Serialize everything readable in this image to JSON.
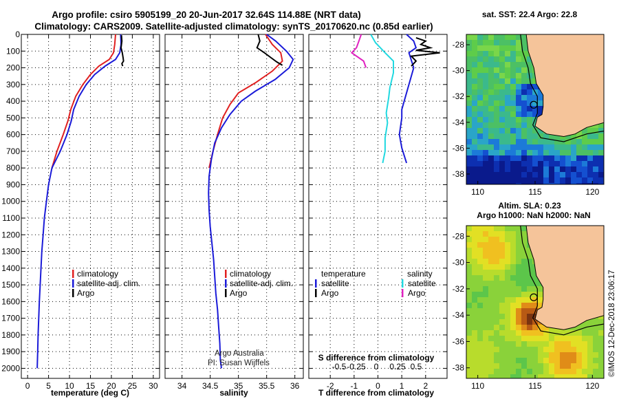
{
  "header": {
    "line1": "Argo profile: csiro 5905199_20 20-Jun-2017 32.64S 114.88E (NRT data)",
    "line2": "Climatology: CARS2009. Satellite-adjusted climatology: synTS_20170620.nc (0.85d earlier)"
  },
  "colors": {
    "climatology": "#e02020",
    "satellite": "#1a1ad8",
    "argo": "#000000",
    "argo_sal_diff": "#e020c0",
    "sat_sal_diff": "#20d8e0",
    "land": "#f5c49a"
  },
  "chart_data": [
    {
      "type": "line",
      "id": "temperature",
      "xlabel": "temperature (deg C)",
      "xlim": [
        -1.5,
        31.5
      ],
      "xticks": [
        0,
        5,
        10,
        15,
        20,
        25,
        30
      ],
      "ylim": [
        0,
        2060
      ],
      "yticks": [
        0,
        100,
        200,
        300,
        400,
        500,
        600,
        700,
        800,
        900,
        1000,
        1100,
        1200,
        1300,
        1400,
        1500,
        1600,
        1700,
        1800,
        1900,
        2000
      ],
      "legend": [
        "climatology",
        "satellite-adj. clim.",
        "Argo"
      ],
      "series": [
        {
          "name": "climatology",
          "points": [
            [
              21,
              0
            ],
            [
              20.8,
              60
            ],
            [
              20.5,
              110
            ],
            [
              19.5,
              150
            ],
            [
              17,
              190
            ],
            [
              15,
              240
            ],
            [
              13.2,
              300
            ],
            [
              11.5,
              370
            ],
            [
              10.3,
              450
            ],
            [
              9.6,
              520
            ],
            [
              8.5,
              600
            ],
            [
              7,
              700
            ],
            [
              5.8,
              800
            ]
          ]
        },
        {
          "name": "satellite-adj. clim.",
          "points": [
            [
              22.2,
              0
            ],
            [
              22.3,
              60
            ],
            [
              22,
              110
            ],
            [
              21,
              150
            ],
            [
              18.5,
              190
            ],
            [
              16,
              240
            ],
            [
              14,
              300
            ],
            [
              12.3,
              370
            ],
            [
              11,
              450
            ],
            [
              10.4,
              520
            ],
            [
              9.4,
              600
            ],
            [
              7.8,
              700
            ],
            [
              5.8,
              800
            ],
            [
              5,
              900
            ],
            [
              4.5,
              1000
            ],
            [
              4,
              1100
            ],
            [
              3.7,
              1200
            ],
            [
              3.4,
              1300
            ],
            [
              3.2,
              1400
            ],
            [
              3,
              1500
            ],
            [
              2.8,
              1600
            ],
            [
              2.65,
              1700
            ],
            [
              2.5,
              1800
            ],
            [
              2.4,
              1900
            ],
            [
              2.3,
              2000
            ]
          ]
        },
        {
          "name": "Argo",
          "points": [
            [
              22.4,
              5
            ],
            [
              22.5,
              40
            ],
            [
              22.3,
              80
            ],
            [
              22.6,
              110
            ],
            [
              22.8,
              140
            ],
            [
              22.9,
              160
            ],
            [
              22.5,
              175
            ],
            [
              22.7,
              190
            ]
          ]
        }
      ]
    },
    {
      "type": "line",
      "id": "salinity",
      "xlabel": "salinity",
      "xlim": [
        33.7,
        36.15
      ],
      "xticks": [
        34,
        34.5,
        35,
        35.5,
        36
      ],
      "legend": [
        "climatology",
        "satellite-adj. clim.",
        "Argo"
      ],
      "series": [
        {
          "name": "climatology",
          "points": [
            [
              35.48,
              0
            ],
            [
              35.6,
              60
            ],
            [
              35.75,
              110
            ],
            [
              35.78,
              160
            ],
            [
              35.6,
              220
            ],
            [
              35.3,
              290
            ],
            [
              35,
              350
            ],
            [
              34.85,
              420
            ],
            [
              34.72,
              500
            ],
            [
              34.63,
              600
            ],
            [
              34.55,
              700
            ],
            [
              34.48,
              800
            ]
          ]
        },
        {
          "name": "satellite-adj. clim.",
          "points": [
            [
              35.5,
              0
            ],
            [
              35.66,
              40
            ],
            [
              35.85,
              100
            ],
            [
              35.97,
              150
            ],
            [
              35.9,
              200
            ],
            [
              35.65,
              270
            ],
            [
              35.3,
              340
            ],
            [
              35.05,
              400
            ],
            [
              34.85,
              480
            ],
            [
              34.7,
              560
            ],
            [
              34.58,
              650
            ],
            [
              34.52,
              750
            ],
            [
              34.48,
              850
            ],
            [
              34.47,
              950
            ],
            [
              34.48,
              1050
            ],
            [
              34.5,
              1150
            ],
            [
              34.53,
              1250
            ],
            [
              34.56,
              1350
            ],
            [
              34.58,
              1450
            ],
            [
              34.6,
              1550
            ],
            [
              34.63,
              1650
            ],
            [
              34.65,
              1750
            ],
            [
              34.67,
              1850
            ],
            [
              34.68,
              1950
            ],
            [
              34.7,
              2000
            ]
          ]
        },
        {
          "name": "Argo",
          "points": [
            [
              35.35,
              0
            ],
            [
              35.38,
              40
            ],
            [
              35.33,
              80
            ],
            [
              35.46,
              110
            ],
            [
              35.58,
              140
            ],
            [
              35.68,
              165
            ],
            [
              35.78,
              185
            ]
          ]
        }
      ],
      "annotations": [
        "Argo Australia",
        "PI: Susan Wijffels"
      ]
    },
    {
      "type": "line",
      "id": "difference",
      "xlabel": "T difference from climatology",
      "xlabel_secondary": "S difference from climatology",
      "xlim": [
        -2.9,
        2.9
      ],
      "xticks": [
        -2,
        -1,
        0,
        1,
        2
      ],
      "xticks_secondary": [
        "-0.5",
        "-0.25",
        "0",
        "0.25",
        "0.5"
      ],
      "legend_left": [
        "temperature",
        "satellite",
        "Argo"
      ],
      "legend_right": [
        "salinity",
        "satellite",
        "Argo"
      ],
      "series": [
        {
          "name": "T satellite",
          "points": [
            [
              1.2,
              0
            ],
            [
              1.5,
              40
            ],
            [
              1.6,
              80
            ],
            [
              1.3,
              110
            ],
            [
              1.5,
              200
            ],
            [
              1.2,
              350
            ],
            [
              1,
              450
            ],
            [
              1,
              500
            ],
            [
              0.9,
              600
            ],
            [
              1,
              680
            ],
            [
              1.2,
              770
            ]
          ]
        },
        {
          "name": "S satellite",
          "points": [
            [
              -0.3,
              0
            ],
            [
              -0.1,
              50
            ],
            [
              0.3,
              110
            ],
            [
              0.65,
              160
            ],
            [
              0.65,
              230
            ],
            [
              0.5,
              320
            ],
            [
              0.45,
              380
            ],
            [
              0.35,
              470
            ],
            [
              0.4,
              530
            ],
            [
              0.3,
              620
            ],
            [
              0.3,
              700
            ],
            [
              0.2,
              770
            ]
          ]
        },
        {
          "name": "T Argo",
          "points": [
            [
              1.6,
              20
            ],
            [
              2.0,
              40
            ],
            [
              1.8,
              60
            ],
            [
              2.2,
              80
            ],
            [
              1.6,
              95
            ],
            [
              2.6,
              110
            ],
            [
              1.4,
              130
            ],
            [
              1.6,
              160
            ],
            [
              1.4,
              190
            ]
          ]
        },
        {
          "name": "S Argo",
          "points": [
            [
              -0.7,
              0
            ],
            [
              -0.8,
              40
            ],
            [
              -0.9,
              80
            ],
            [
              -1.1,
              110
            ],
            [
              -0.9,
              130
            ],
            [
              -0.6,
              160
            ],
            [
              -0.5,
              200
            ]
          ]
        }
      ]
    },
    {
      "type": "heatmap",
      "id": "sst-map",
      "title": "sat. SST: 22.4 Argo: 22.8",
      "xticks": [
        110,
        115,
        120
      ],
      "yticks": [
        -28,
        -30,
        -32,
        -34,
        -36,
        -38
      ],
      "xlim": [
        109,
        121
      ],
      "ylim": [
        -38.8,
        -27.2
      ],
      "marker": {
        "lon": 114.88,
        "lat": -32.64
      }
    },
    {
      "type": "heatmap",
      "id": "sla-map",
      "title_line1": "Altim. SLA: 0.23",
      "title_line2": "Argo h1000: NaN h2000: NaN",
      "xticks": [
        110,
        115,
        120
      ],
      "yticks": [
        -28,
        -30,
        -32,
        -34,
        -36,
        -38
      ],
      "xlim": [
        109,
        121
      ],
      "ylim": [
        -38.8,
        -27.2
      ],
      "marker": {
        "lon": 114.88,
        "lat": -32.64
      }
    }
  ],
  "credit": "©IMOS 12-Dec-2018 23:06:17"
}
